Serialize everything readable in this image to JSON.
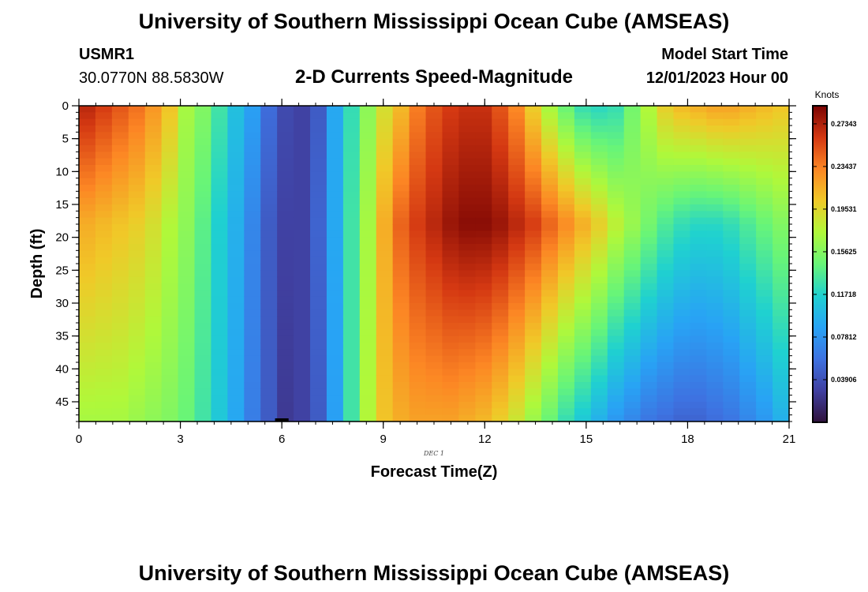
{
  "page_title": "University of Southern Mississippi Ocean Cube (AMSEAS)",
  "station": {
    "id": "USMR1",
    "coordinates": "30.0770N  88.5830W"
  },
  "model_start": {
    "label": "Model Start Time",
    "value": "12/01/2023 Hour 00"
  },
  "chart_data": {
    "type": "heatmap",
    "title": "2-D Currents Speed-Magnitude",
    "xlabel": "Forecast Time(Z)",
    "ylabel": "Depth (ft)",
    "date_label": "DEC 1",
    "xlim": [
      0,
      21
    ],
    "ylim": [
      0,
      48
    ],
    "y_inverted": true,
    "x_ticks": [
      "0",
      "3",
      "6",
      "9",
      "12",
      "15",
      "18",
      "21"
    ],
    "x_tick_values": [
      0,
      3,
      6,
      9,
      12,
      15,
      18,
      21
    ],
    "y_ticks": [
      "0",
      "5",
      "10",
      "15",
      "20",
      "25",
      "30",
      "35",
      "40",
      "45"
    ],
    "y_tick_values": [
      0,
      5,
      10,
      15,
      20,
      25,
      30,
      35,
      40,
      45
    ],
    "colorbar": {
      "unit": "Knots",
      "range": [
        0.0,
        0.29
      ],
      "tick_labels": [
        "0.27343",
        "0.23437",
        "0.19531",
        "0.15625",
        "0.11718",
        "0.07812",
        "0.03906"
      ],
      "tick_values": [
        0.27343,
        0.23437,
        0.19531,
        0.15625,
        0.11718,
        0.07812,
        0.03906
      ]
    },
    "time_columns": [
      0,
      0.5,
      1,
      1.5,
      2,
      2.5,
      3,
      3.5,
      4,
      4.5,
      5,
      5.5,
      6,
      6.5,
      7,
      7.5,
      8,
      8.5,
      9,
      9.5,
      10,
      10.5,
      11,
      11.5,
      12,
      12.5,
      13,
      13.5,
      14,
      14.5,
      15,
      15.5,
      16,
      16.5,
      17,
      17.5,
      18,
      18.5,
      19,
      19.5,
      20,
      20.5,
      21
    ],
    "speed_at_surface_knots": [
      0.27,
      0.26,
      0.25,
      0.24,
      0.225,
      0.205,
      0.17,
      0.155,
      0.13,
      0.105,
      0.085,
      0.055,
      0.035,
      0.03,
      0.045,
      0.09,
      0.125,
      0.16,
      0.19,
      0.21,
      0.235,
      0.25,
      0.26,
      0.265,
      0.265,
      0.25,
      0.23,
      0.2,
      0.17,
      0.145,
      0.125,
      0.12,
      0.125,
      0.15,
      0.175,
      0.2,
      0.21,
      0.215,
      0.22,
      0.22,
      0.215,
      0.21,
      0.205
    ],
    "speed_at_mid_depth_knots": [
      0.215,
      0.21,
      0.205,
      0.2,
      0.19,
      0.175,
      0.16,
      0.14,
      0.115,
      0.095,
      0.07,
      0.045,
      0.03,
      0.03,
      0.05,
      0.09,
      0.13,
      0.17,
      0.215,
      0.245,
      0.26,
      0.27,
      0.28,
      0.285,
      0.285,
      0.28,
      0.27,
      0.26,
      0.245,
      0.23,
      0.215,
      0.2,
      0.18,
      0.165,
      0.15,
      0.135,
      0.125,
      0.12,
      0.12,
      0.125,
      0.135,
      0.145,
      0.155
    ],
    "speed_at_bottom_knots": [
      0.17,
      0.17,
      0.17,
      0.165,
      0.16,
      0.155,
      0.145,
      0.13,
      0.11,
      0.09,
      0.065,
      0.045,
      0.025,
      0.03,
      0.045,
      0.085,
      0.13,
      0.175,
      0.205,
      0.215,
      0.22,
      0.22,
      0.22,
      0.215,
      0.21,
      0.2,
      0.185,
      0.165,
      0.145,
      0.125,
      0.11,
      0.095,
      0.08,
      0.07,
      0.06,
      0.055,
      0.05,
      0.05,
      0.055,
      0.06,
      0.07,
      0.08,
      0.095
    ],
    "mid_depth_ft": 18,
    "bottom_depth_ft": 48
  }
}
